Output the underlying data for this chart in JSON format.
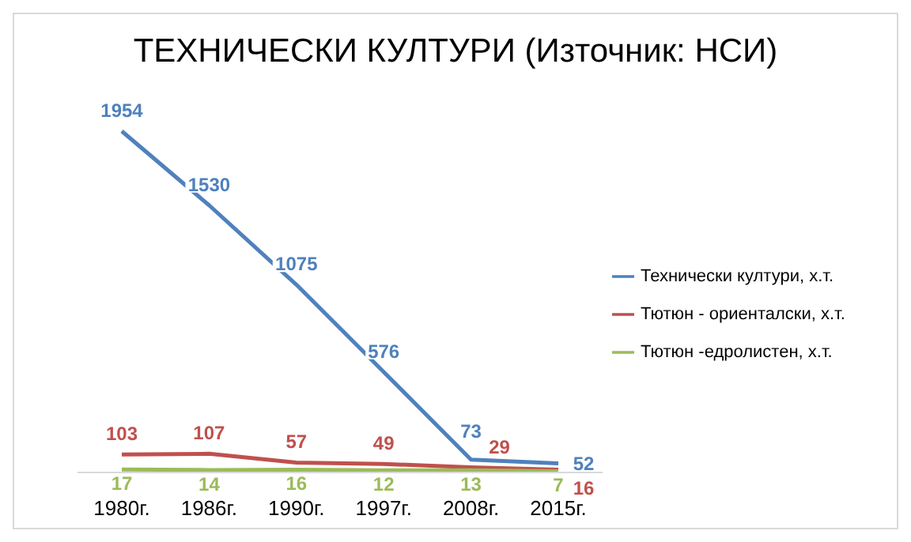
{
  "chart_data": {
    "type": "line",
    "title": "ТЕХНИЧЕСКИ КУЛТУРИ (Източник: НСИ)",
    "categories": [
      "1980г.",
      "1986г.",
      "1990г.",
      "1997г.",
      "2008г.",
      "2015г."
    ],
    "series": [
      {
        "name": "Технически култури, х.т.",
        "color": "#4f81bd",
        "values": [
          1954,
          1530,
          1075,
          576,
          73,
          52
        ]
      },
      {
        "name": "Тютюн - ориенталски, х.т.",
        "color": "#c0504d",
        "values": [
          103,
          107,
          57,
          49,
          29,
          16
        ]
      },
      {
        "name": "Тютюн -едролистен, х.т.",
        "color": "#9bbb59",
        "values": [
          17,
          14,
          16,
          12,
          13,
          7
        ]
      }
    ],
    "data_labels": true,
    "legend": "right",
    "grid": false,
    "marker": "none"
  }
}
